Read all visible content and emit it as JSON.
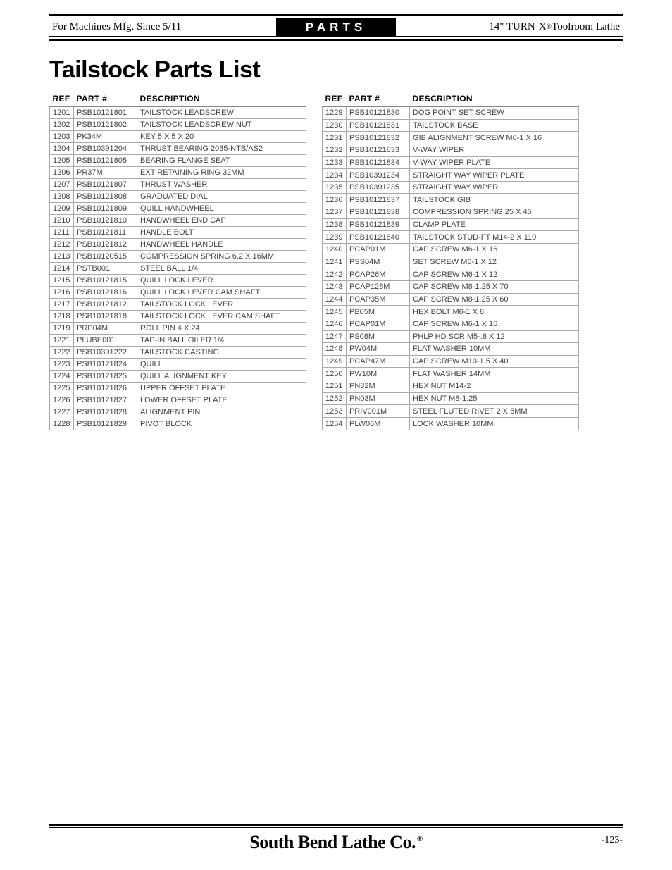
{
  "header": {
    "left": "For Machines Mfg. Since 5/11",
    "center": "PARTS",
    "right_prefix": "14\" TURN-X",
    "right_suffix": " Toolroom Lathe",
    "reg": "®"
  },
  "title": "Tailstock Parts List",
  "table_headers": {
    "ref": "REF",
    "part": "PART #",
    "desc": "DESCRIPTION"
  },
  "left_table": [
    {
      "ref": "1201",
      "part": "PSB10121801",
      "desc": "TAILSTOCK LEADSCREW"
    },
    {
      "ref": "1202",
      "part": "PSB10121802",
      "desc": "TAILSTOCK LEADSCREW NUT"
    },
    {
      "ref": "1203",
      "part": "PK34M",
      "desc": "KEY 5 X 5 X 20"
    },
    {
      "ref": "1204",
      "part": "PSB10391204",
      "desc": "THRUST BEARING 2035-NTB/AS2"
    },
    {
      "ref": "1205",
      "part": "PSB10121805",
      "desc": "BEARING FLANGE SEAT"
    },
    {
      "ref": "1206",
      "part": "PR37M",
      "desc": "EXT RETAINING RING 32MM"
    },
    {
      "ref": "1207",
      "part": "PSB10121807",
      "desc": "THRUST WASHER"
    },
    {
      "ref": "1208",
      "part": "PSB10121808",
      "desc": "GRADUATED DIAL"
    },
    {
      "ref": "1209",
      "part": "PSB10121809",
      "desc": "QUILL HANDWHEEL"
    },
    {
      "ref": "1210",
      "part": "PSB10121810",
      "desc": "HANDWHEEL END CAP"
    },
    {
      "ref": "1211",
      "part": "PSB10121811",
      "desc": "HANDLE BOLT"
    },
    {
      "ref": "1212",
      "part": "PSB10121812",
      "desc": "HANDWHEEL HANDLE"
    },
    {
      "ref": "1213",
      "part": "PSB10120515",
      "desc": "COMPRESSION SPRING 6.2 X 16MM"
    },
    {
      "ref": "1214",
      "part": "PSTB001",
      "desc": "STEEL BALL 1/4"
    },
    {
      "ref": "1215",
      "part": "PSB10121815",
      "desc": "QUILL LOCK LEVER"
    },
    {
      "ref": "1216",
      "part": "PSB10121816",
      "desc": "QUILL LOCK LEVER CAM SHAFT"
    },
    {
      "ref": "1217",
      "part": "PSB10121812",
      "desc": "TAILSTOCK LOCK LEVER"
    },
    {
      "ref": "1218",
      "part": "PSB10121818",
      "desc": "TAILSTOCK LOCK LEVER CAM SHAFT"
    },
    {
      "ref": "1219",
      "part": "PRP04M",
      "desc": "ROLL PIN 4 X 24"
    },
    {
      "ref": "1221",
      "part": "PLUBE001",
      "desc": "TAP-IN BALL OILER 1/4"
    },
    {
      "ref": "1222",
      "part": "PSB10391222",
      "desc": "TAILSTOCK CASTING"
    },
    {
      "ref": "1223",
      "part": "PSB10121824",
      "desc": "QUILL"
    },
    {
      "ref": "1224",
      "part": "PSB10121825",
      "desc": "QUILL ALIGNMENT KEY"
    },
    {
      "ref": "1225",
      "part": "PSB10121826",
      "desc": "UPPER OFFSET PLATE"
    },
    {
      "ref": "1226",
      "part": "PSB10121827",
      "desc": "LOWER OFFSET PLATE"
    },
    {
      "ref": "1227",
      "part": "PSB10121828",
      "desc": "ALIGNMENT PIN"
    },
    {
      "ref": "1228",
      "part": "PSB10121829",
      "desc": "PIVOT BLOCK"
    }
  ],
  "right_table": [
    {
      "ref": "1229",
      "part": "PSB10121830",
      "desc": "DOG POINT SET SCREW"
    },
    {
      "ref": "1230",
      "part": "PSB10121831",
      "desc": "TAILSTOCK BASE"
    },
    {
      "ref": "1231",
      "part": "PSB10121832",
      "desc": "GIB ALIGNMENT SCREW M6-1 X 16"
    },
    {
      "ref": "1232",
      "part": "PSB10121833",
      "desc": "V-WAY WIPER"
    },
    {
      "ref": "1233",
      "part": "PSB10121834",
      "desc": "V-WAY WIPER PLATE"
    },
    {
      "ref": "1234",
      "part": "PSB10391234",
      "desc": "STRAIGHT WAY WIPER PLATE"
    },
    {
      "ref": "1235",
      "part": "PSB10391235",
      "desc": "STRAIGHT WAY WIPER"
    },
    {
      "ref": "1236",
      "part": "PSB10121837",
      "desc": "TAILSTOCK GIB"
    },
    {
      "ref": "1237",
      "part": "PSB10121838",
      "desc": "COMPRESSION SPRING 25 X 45"
    },
    {
      "ref": "1238",
      "part": "PSB10121839",
      "desc": "CLAMP PLATE"
    },
    {
      "ref": "1239",
      "part": "PSB10121840",
      "desc": "TAILSTOCK STUD-FT M14-2 X 110"
    },
    {
      "ref": "1240",
      "part": "PCAP01M",
      "desc": "CAP SCREW M6-1 X 16"
    },
    {
      "ref": "1241",
      "part": "PSS04M",
      "desc": "SET SCREW M6-1 X 12"
    },
    {
      "ref": "1242",
      "part": "PCAP26M",
      "desc": "CAP SCREW M6-1 X 12"
    },
    {
      "ref": "1243",
      "part": "PCAP128M",
      "desc": "CAP SCREW M8-1.25 X 70"
    },
    {
      "ref": "1244",
      "part": "PCAP35M",
      "desc": "CAP SCREW M8-1.25 X 60"
    },
    {
      "ref": "1245",
      "part": "PB05M",
      "desc": "HEX BOLT M6-1 X 8"
    },
    {
      "ref": "1246",
      "part": "PCAP01M",
      "desc": "CAP SCREW M6-1 X 16"
    },
    {
      "ref": "1247",
      "part": "PS08M",
      "desc": "PHLP HD SCR M5-.8 X 12"
    },
    {
      "ref": "1248",
      "part": "PW04M",
      "desc": "FLAT WASHER 10MM"
    },
    {
      "ref": "1249",
      "part": "PCAP47M",
      "desc": "CAP SCREW M10-1.5 X 40"
    },
    {
      "ref": "1250",
      "part": "PW10M",
      "desc": "FLAT WASHER 14MM"
    },
    {
      "ref": "1251",
      "part": "PN32M",
      "desc": "HEX NUT M14-2"
    },
    {
      "ref": "1252",
      "part": "PN03M",
      "desc": "HEX NUT M8-1.25"
    },
    {
      "ref": "1253",
      "part": "PRIV001M",
      "desc": "STEEL FLUTED RIVET 2 X 5MM"
    },
    {
      "ref": "1254",
      "part": "PLW06M",
      "desc": "LOCK WASHER 10MM"
    }
  ],
  "footer": {
    "brand": "South Bend Lathe Co.",
    "reg": "®",
    "page": "-123-"
  },
  "colors": {
    "text": "#000000",
    "cell_text": "#444444",
    "rule": "#000000",
    "cell_border": "#aaaaaa",
    "header_bg": "#000000",
    "header_fg": "#ffffff",
    "page_bg": "#ffffff"
  }
}
